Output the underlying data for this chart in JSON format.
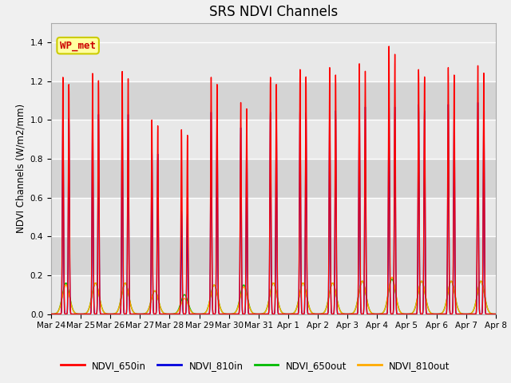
{
  "title": "SRS NDVI Channels",
  "ylabel": "NDVI Channels (W/m2/mm)",
  "xlabel": "",
  "ylim": [
    0,
    1.5
  ],
  "annotation_text": "WP_met",
  "annotation_color": "#cc0000",
  "annotation_bg": "#ffffa0",
  "legend_labels": [
    "NDVI_650in",
    "NDVI_810in",
    "NDVI_650out",
    "NDVI_810out"
  ],
  "line_colors": [
    "#ff0000",
    "#0000dd",
    "#00bb00",
    "#ffaa00"
  ],
  "xtick_labels": [
    "Mar 24",
    "Mar 25",
    "Mar 26",
    "Mar 27",
    "Mar 28",
    "Mar 29",
    "Mar 30",
    "Mar 31",
    "Apr 1",
    "Apr 2",
    "Apr 3",
    "Apr 4",
    "Apr 5",
    "Apr 6",
    "Apr 7",
    "Apr 8"
  ],
  "peak_heights_650in": [
    1.22,
    1.24,
    1.25,
    1.0,
    0.95,
    1.22,
    1.09,
    1.22,
    1.26,
    1.27,
    1.29,
    1.38,
    1.26,
    1.27,
    1.28
  ],
  "peak_heights_810in": [
    1.04,
    1.06,
    1.06,
    0.85,
    0.53,
    1.04,
    0.96,
    1.04,
    1.07,
    1.08,
    1.1,
    1.1,
    1.08,
    1.08,
    1.09
  ],
  "peak_heights_650out": [
    0.16,
    0.16,
    0.16,
    0.12,
    0.1,
    0.15,
    0.15,
    0.16,
    0.16,
    0.16,
    0.17,
    0.18,
    0.17,
    0.17,
    0.17
  ],
  "peak_heights_810out": [
    0.15,
    0.16,
    0.16,
    0.12,
    0.08,
    0.15,
    0.14,
    0.16,
    0.16,
    0.16,
    0.17,
    0.19,
    0.17,
    0.17,
    0.17
  ],
  "hband_color": "#d8d8d8",
  "fig_bg": "#f0f0f0",
  "ax_bg": "#e8e8e8"
}
